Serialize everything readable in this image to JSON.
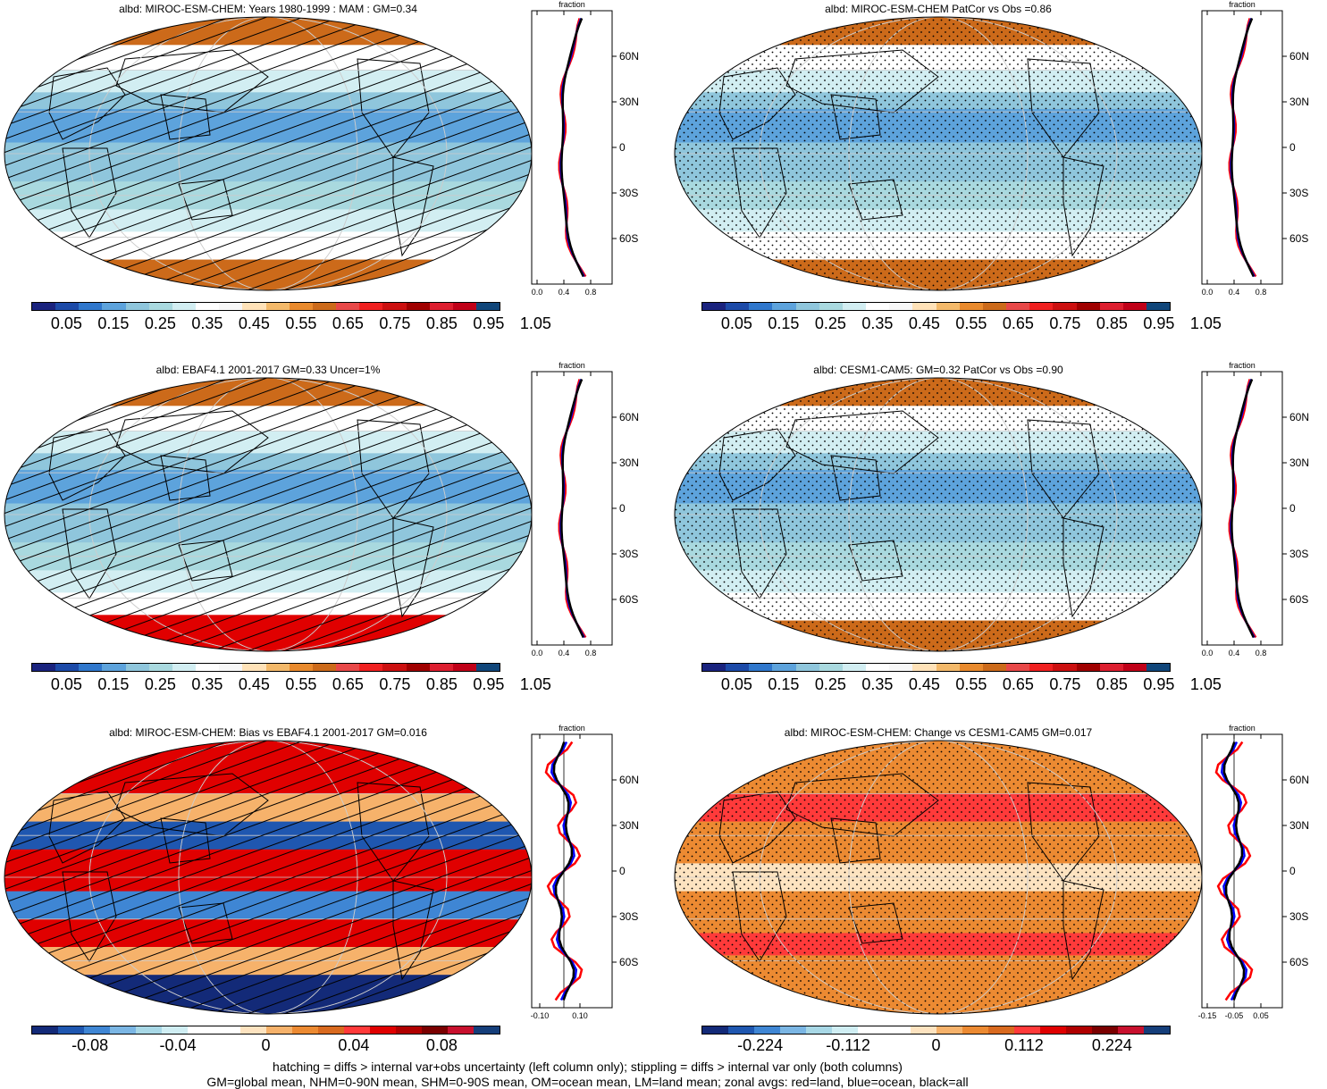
{
  "colors": {
    "mean_scale": [
      "#1a237e",
      "#1c4aa8",
      "#2f77cc",
      "#5da3dc",
      "#8fc6dc",
      "#a9d9df",
      "#d2eef2",
      "#ffffff",
      "#f7f7f7",
      "#ffe2b8",
      "#f3b96a",
      "#e98a2d",
      "#cc6a1a",
      "#e84848",
      "#f02020",
      "#cc1010",
      "#a00000",
      "#dd1e2f",
      "#c00018",
      "#10467a"
    ],
    "diff_scale": [
      "#132a78",
      "#1f57b0",
      "#3f86d4",
      "#7bb6e4",
      "#a8d8e6",
      "#d0eef3",
      "#ffffff",
      "#ffffff",
      "#fde3c0",
      "#f6b26b",
      "#ec8a32",
      "#d96a1f",
      "#ff3a3a",
      "#e00000",
      "#b00000",
      "#7a0000",
      "#c8102e",
      "#153e7a"
    ],
    "land_line": "#ff0000",
    "ocean_line": "#0000ff",
    "all_line": "#000000"
  },
  "panels": [
    {
      "title": "albd: MIROC-ESM-CHEM: Years 1980-1999 : MAM : GM=0.34",
      "kind": "mean",
      "pattern": "hatch",
      "cb_labels": [
        "0.05",
        "0.15",
        "0.25",
        "0.35",
        "0.45",
        "0.55",
        "0.65",
        "0.75",
        "0.85",
        "0.95",
        "1.05"
      ],
      "zonal_xticks": [
        "0.0",
        "0.4",
        "0.8"
      ]
    },
    {
      "title": "albd: MIROC-ESM-CHEM PatCor vs Obs =0.86",
      "kind": "mean",
      "pattern": "stipple",
      "cb_labels": [
        "0.05",
        "0.15",
        "0.25",
        "0.35",
        "0.45",
        "0.55",
        "0.65",
        "0.75",
        "0.85",
        "0.95",
        "1.05"
      ],
      "zonal_xticks": [
        "0.0",
        "0.4",
        "0.8"
      ]
    },
    {
      "title": "albd: EBAF4.1 2001-2017 GM=0.33 Uncer=1%",
      "kind": "mean",
      "pattern": "hatch",
      "cb_labels": [
        "0.05",
        "0.15",
        "0.25",
        "0.35",
        "0.45",
        "0.55",
        "0.65",
        "0.75",
        "0.85",
        "0.95",
        "1.05"
      ],
      "zonal_xticks": [
        "0.0",
        "0.4",
        "0.8"
      ]
    },
    {
      "title": "albd: CESM1-CAM5: GM=0.32 PatCor vs Obs =0.90",
      "kind": "mean",
      "pattern": "stipple",
      "cb_labels": [
        "0.05",
        "0.15",
        "0.25",
        "0.35",
        "0.45",
        "0.55",
        "0.65",
        "0.75",
        "0.85",
        "0.95",
        "1.05"
      ],
      "zonal_xticks": [
        "0.0",
        "0.4",
        "0.8"
      ]
    },
    {
      "title": "albd: MIROC-ESM-CHEM: Bias vs EBAF4.1 2001-2017 GM=0.016",
      "kind": "diff",
      "pattern": "hatch",
      "cb_labels": [
        "-0.08",
        "-0.04",
        "0",
        "0.04",
        "0.08"
      ],
      "zonal_xticks": [
        "-0.10",
        "0.10"
      ]
    },
    {
      "title": "albd: MIROC-ESM-CHEM: Change vs CESM1-CAM5 GM=0.017",
      "kind": "diff",
      "pattern": "stipple",
      "cb_labels": [
        "-0.224",
        "-0.112",
        "0",
        "0.112",
        "0.224"
      ],
      "zonal_xticks": [
        "-0.15",
        "-0.05",
        "0.05"
      ]
    }
  ],
  "zonal": {
    "top_label": "fraction",
    "lat_labels": [
      "60N",
      "30N",
      "0",
      "30S",
      "60S"
    ]
  },
  "footer": {
    "line1": "hatching = diffs > internal var+obs uncertainty (left column only); stippling = diffs > internal var only (both columns)",
    "line2": "GM=global mean, NHM=0-90N mean, SHM=0-90S mean, OM=ocean mean, LM=land mean; zonal avgs: red=land, blue=ocean, black=all"
  }
}
